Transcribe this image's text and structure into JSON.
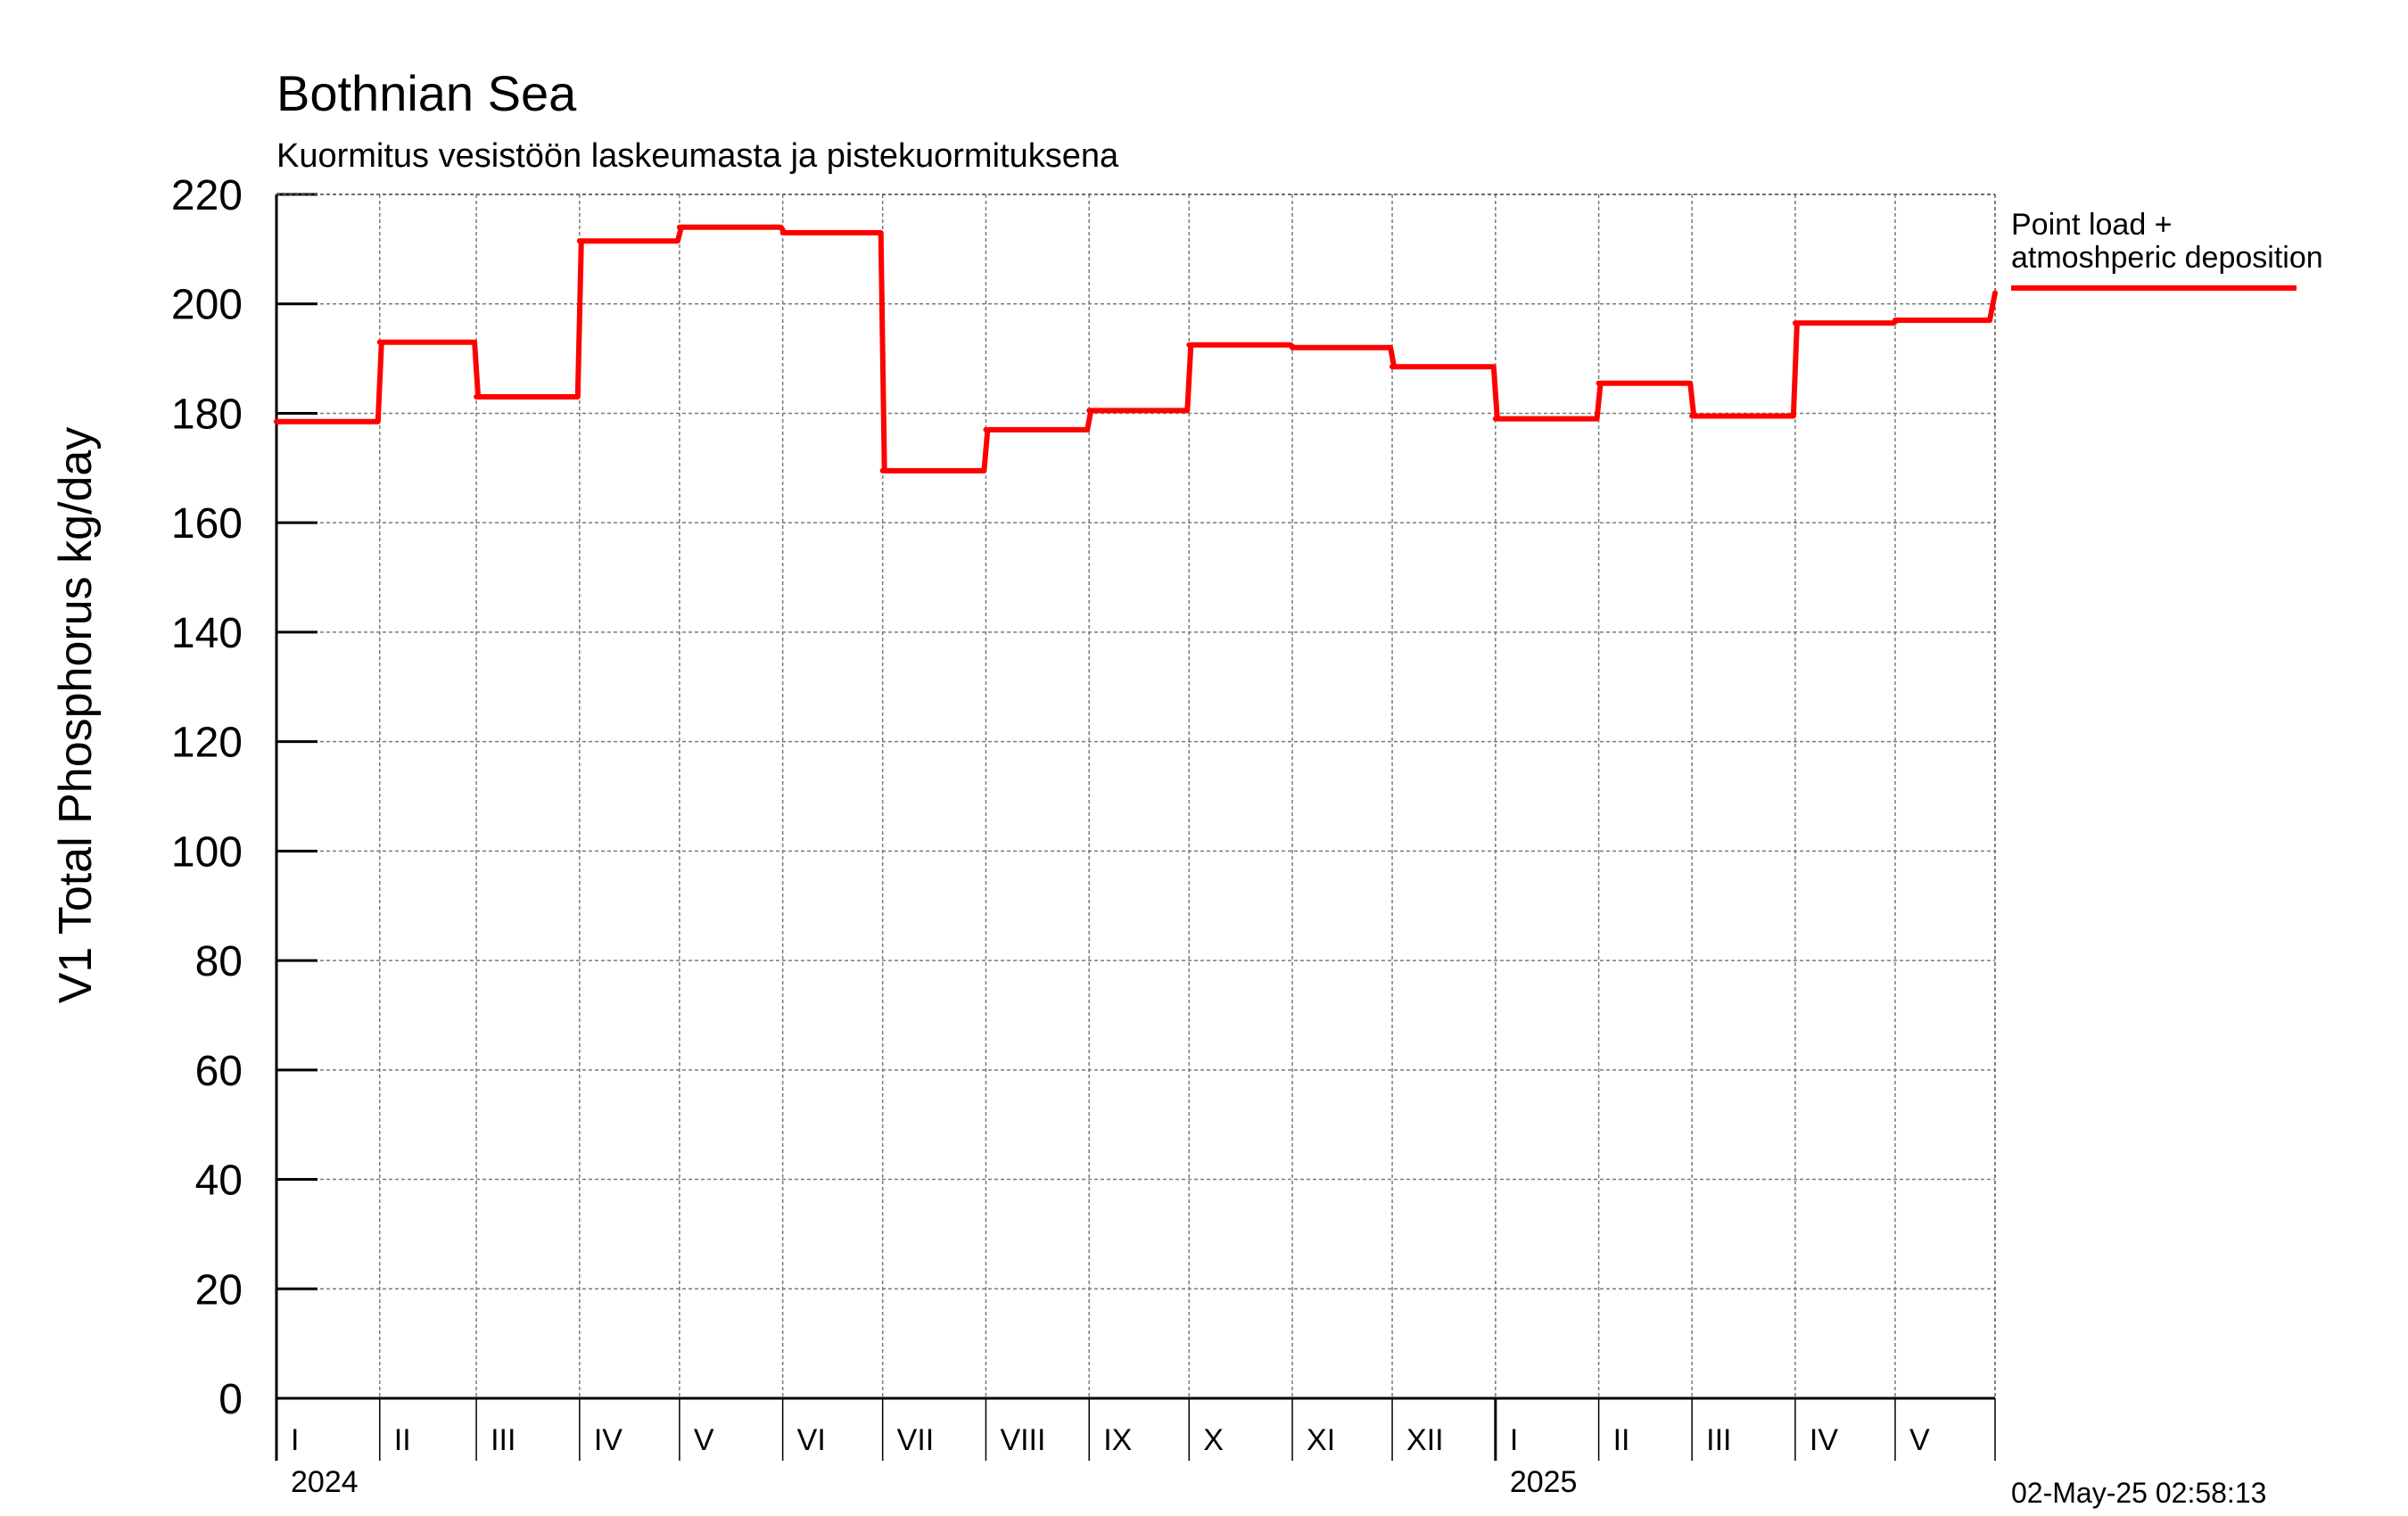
{
  "chart_data": {
    "type": "line",
    "title": "Bothnian Sea",
    "subtitle": "Kuormitus vesistöön laskeumasta ja pistekuormituksena",
    "ylabel": "V1 Total Phosphorus kg/day",
    "xlabel": "",
    "ylim": [
      0,
      220
    ],
    "yticks": [
      0,
      20,
      40,
      60,
      80,
      100,
      120,
      140,
      160,
      180,
      200,
      220
    ],
    "xlim": [
      "2024-01-01",
      "2025-05-31"
    ],
    "grid": true,
    "line_style": "step",
    "legend_position": "right",
    "months": [
      {
        "start": "2024-01-01",
        "label": "I"
      },
      {
        "start": "2024-02-01",
        "label": "II"
      },
      {
        "start": "2024-03-01",
        "label": "III"
      },
      {
        "start": "2024-04-01",
        "label": "IV"
      },
      {
        "start": "2024-05-01",
        "label": "V"
      },
      {
        "start": "2024-06-01",
        "label": "VI"
      },
      {
        "start": "2024-07-01",
        "label": "VII"
      },
      {
        "start": "2024-08-01",
        "label": "VIII"
      },
      {
        "start": "2024-09-01",
        "label": "IX"
      },
      {
        "start": "2024-10-01",
        "label": "X"
      },
      {
        "start": "2024-11-01",
        "label": "XI"
      },
      {
        "start": "2024-12-01",
        "label": "XII"
      },
      {
        "start": "2025-01-01",
        "label": "I"
      },
      {
        "start": "2025-02-01",
        "label": "II"
      },
      {
        "start": "2025-03-01",
        "label": "III"
      },
      {
        "start": "2025-04-01",
        "label": "IV"
      },
      {
        "start": "2025-05-01",
        "label": "V"
      }
    ],
    "years": [
      {
        "date": "2024-01-01",
        "label": "2024"
      },
      {
        "date": "2025-01-01",
        "label": "2025"
      }
    ],
    "series": [
      {
        "name": "Point load + atmoshperic deposition",
        "color": "#ff0000",
        "points": [
          {
            "x": "2024-01-01",
            "y": 178.5
          },
          {
            "x": "2024-02-01",
            "y": 193.0
          },
          {
            "x": "2024-03-01",
            "y": 183.0
          },
          {
            "x": "2024-04-01",
            "y": 211.5
          },
          {
            "x": "2024-05-01",
            "y": 214.0
          },
          {
            "x": "2024-06-01",
            "y": 213.0
          },
          {
            "x": "2024-07-01",
            "y": 169.5
          },
          {
            "x": "2024-08-01",
            "y": 177.0
          },
          {
            "x": "2024-09-01",
            "y": 180.5
          },
          {
            "x": "2024-10-01",
            "y": 192.5
          },
          {
            "x": "2024-11-01",
            "y": 192.0
          },
          {
            "x": "2024-12-01",
            "y": 188.5
          },
          {
            "x": "2025-01-01",
            "y": 179.0
          },
          {
            "x": "2025-02-01",
            "y": 185.5
          },
          {
            "x": "2025-03-01",
            "y": 179.5
          },
          {
            "x": "2025-04-01",
            "y": 196.5
          },
          {
            "x": "2025-05-01",
            "y": 197.0
          },
          {
            "x": "2025-05-31",
            "y": 202.0
          }
        ]
      }
    ],
    "legend": {
      "line1": "Point load +",
      "line2": "atmoshperic deposition"
    },
    "timestamp": "02-May-25 02:58:13"
  }
}
